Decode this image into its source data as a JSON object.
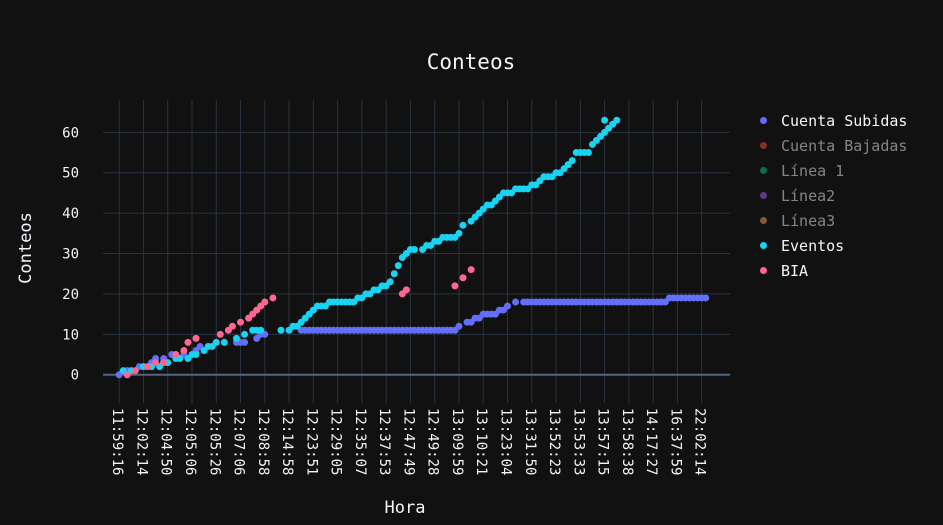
{
  "chart_data": {
    "type": "scatter",
    "title": "Conteos",
    "xlabel": "Hora",
    "ylabel": "Conteos",
    "ylim": [
      -7,
      68
    ],
    "yticks": [
      0,
      10,
      20,
      30,
      40,
      50,
      60
    ],
    "grid": true,
    "legend_position": "right",
    "xticks": [
      {
        "i": 0,
        "label": "11:59:16"
      },
      {
        "i": 6,
        "label": "12:02:14"
      },
      {
        "i": 12,
        "label": "12:04:50"
      },
      {
        "i": 18,
        "label": "12:05:06"
      },
      {
        "i": 24,
        "label": "12:05:26"
      },
      {
        "i": 30,
        "label": "12:07:06"
      },
      {
        "i": 36,
        "label": "12:08:58"
      },
      {
        "i": 42,
        "label": "12:14:58"
      },
      {
        "i": 48,
        "label": "12:23:51"
      },
      {
        "i": 54,
        "label": "12:29:05"
      },
      {
        "i": 60,
        "label": "12:35:07"
      },
      {
        "i": 66,
        "label": "12:37:53"
      },
      {
        "i": 72,
        "label": "12:47:49"
      },
      {
        "i": 78,
        "label": "12:49:28"
      },
      {
        "i": 84,
        "label": "13:09:59"
      },
      {
        "i": 90,
        "label": "13:10:21"
      },
      {
        "i": 96,
        "label": "13:23:04"
      },
      {
        "i": 102,
        "label": "13:31:50"
      },
      {
        "i": 108,
        "label": "13:52:23"
      },
      {
        "i": 114,
        "label": "13:53:33"
      },
      {
        "i": 120,
        "label": "13:57:15"
      },
      {
        "i": 126,
        "label": "13:58:38"
      },
      {
        "i": 132,
        "label": "14:17:27"
      },
      {
        "i": 138,
        "label": "16:37:59"
      },
      {
        "i": 144,
        "label": "22:02:14"
      }
    ],
    "series": [
      {
        "name": "Cuenta Subidas",
        "color": "#636efa",
        "visible": true,
        "points": [
          [
            0,
            0
          ],
          [
            2,
            1
          ],
          [
            5,
            2
          ],
          [
            8,
            3
          ],
          [
            9,
            4
          ],
          [
            11,
            4
          ],
          [
            13,
            5
          ],
          [
            16,
            5
          ],
          [
            19,
            6
          ],
          [
            20,
            7
          ],
          [
            29,
            8
          ],
          [
            30,
            8
          ],
          [
            31,
            8
          ],
          [
            34,
            9
          ],
          [
            35,
            10
          ],
          [
            36,
            10
          ],
          [
            45,
            11
          ],
          [
            46,
            11
          ],
          [
            47,
            11
          ],
          [
            48,
            11
          ],
          [
            49,
            11
          ],
          [
            50,
            11
          ],
          [
            51,
            11
          ],
          [
            52,
            11
          ],
          [
            53,
            11
          ],
          [
            54,
            11
          ],
          [
            55,
            11
          ],
          [
            56,
            11
          ],
          [
            57,
            11
          ],
          [
            58,
            11
          ],
          [
            59,
            11
          ],
          [
            60,
            11
          ],
          [
            61,
            11
          ],
          [
            62,
            11
          ],
          [
            63,
            11
          ],
          [
            64,
            11
          ],
          [
            65,
            11
          ],
          [
            66,
            11
          ],
          [
            67,
            11
          ],
          [
            68,
            11
          ],
          [
            69,
            11
          ],
          [
            70,
            11
          ],
          [
            71,
            11
          ],
          [
            72,
            11
          ],
          [
            73,
            11
          ],
          [
            74,
            11
          ],
          [
            75,
            11
          ],
          [
            76,
            11
          ],
          [
            77,
            11
          ],
          [
            78,
            11
          ],
          [
            79,
            11
          ],
          [
            80,
            11
          ],
          [
            81,
            11
          ],
          [
            82,
            11
          ],
          [
            83,
            11
          ],
          [
            84,
            12
          ],
          [
            86,
            13
          ],
          [
            87,
            13
          ],
          [
            88,
            14
          ],
          [
            89,
            14
          ],
          [
            90,
            15
          ],
          [
            91,
            15
          ],
          [
            92,
            15
          ],
          [
            93,
            15
          ],
          [
            94,
            16
          ],
          [
            95,
            16
          ],
          [
            96,
            17
          ],
          [
            98,
            18
          ],
          [
            100,
            18
          ],
          [
            101,
            18
          ],
          [
            102,
            18
          ],
          [
            103,
            18
          ],
          [
            104,
            18
          ],
          [
            105,
            18
          ],
          [
            106,
            18
          ],
          [
            107,
            18
          ],
          [
            108,
            18
          ],
          [
            109,
            18
          ],
          [
            110,
            18
          ],
          [
            111,
            18
          ],
          [
            112,
            18
          ],
          [
            113,
            18
          ],
          [
            114,
            18
          ],
          [
            115,
            18
          ],
          [
            116,
            18
          ],
          [
            117,
            18
          ],
          [
            118,
            18
          ],
          [
            119,
            18
          ],
          [
            120,
            18
          ],
          [
            121,
            18
          ],
          [
            122,
            18
          ],
          [
            123,
            18
          ],
          [
            124,
            18
          ],
          [
            125,
            18
          ],
          [
            126,
            18
          ],
          [
            127,
            18
          ],
          [
            128,
            18
          ],
          [
            129,
            18
          ],
          [
            130,
            18
          ],
          [
            131,
            18
          ],
          [
            132,
            18
          ],
          [
            133,
            18
          ],
          [
            134,
            18
          ],
          [
            135,
            18
          ],
          [
            136,
            19
          ],
          [
            137,
            19
          ],
          [
            138,
            19
          ],
          [
            139,
            19
          ],
          [
            140,
            19
          ],
          [
            141,
            19
          ],
          [
            142,
            19
          ],
          [
            143,
            19
          ],
          [
            144,
            19
          ],
          [
            145,
            19
          ]
        ]
      },
      {
        "name": "Cuenta Bajadas",
        "color": "#ef553b",
        "visible": false,
        "points": []
      },
      {
        "name": "Línea 1",
        "color": "#00cc96",
        "visible": false,
        "points": []
      },
      {
        "name": "Línea2",
        "color": "#ab63fa",
        "visible": false,
        "points": []
      },
      {
        "name": "Línea3",
        "color": "#ffa15a",
        "visible": false,
        "points": []
      },
      {
        "name": "Eventos",
        "color": "#19d3f3",
        "visible": true,
        "points": [
          [
            1,
            1
          ],
          [
            3,
            1
          ],
          [
            6,
            2
          ],
          [
            8,
            2
          ],
          [
            10,
            2
          ],
          [
            11,
            3
          ],
          [
            12,
            3
          ],
          [
            14,
            4
          ],
          [
            15,
            4
          ],
          [
            17,
            4
          ],
          [
            18,
            5
          ],
          [
            19,
            5
          ],
          [
            21,
            6
          ],
          [
            22,
            7
          ],
          [
            23,
            7
          ],
          [
            24,
            8
          ],
          [
            26,
            8
          ],
          [
            29,
            9
          ],
          [
            31,
            10
          ],
          [
            33,
            11
          ],
          [
            34,
            11
          ],
          [
            35,
            11
          ],
          [
            40,
            11
          ],
          [
            42,
            11
          ],
          [
            43,
            12
          ],
          [
            44,
            12
          ],
          [
            45,
            13
          ],
          [
            46,
            14
          ],
          [
            47,
            15
          ],
          [
            48,
            16
          ],
          [
            49,
            17
          ],
          [
            50,
            17
          ],
          [
            51,
            17
          ],
          [
            52,
            18
          ],
          [
            53,
            18
          ],
          [
            54,
            18
          ],
          [
            55,
            18
          ],
          [
            56,
            18
          ],
          [
            57,
            18
          ],
          [
            58,
            18
          ],
          [
            59,
            19
          ],
          [
            60,
            19
          ],
          [
            61,
            20
          ],
          [
            62,
            20
          ],
          [
            63,
            21
          ],
          [
            64,
            21
          ],
          [
            65,
            22
          ],
          [
            66,
            22
          ],
          [
            67,
            23
          ],
          [
            68,
            25
          ],
          [
            69,
            27
          ],
          [
            70,
            29
          ],
          [
            71,
            30
          ],
          [
            72,
            31
          ],
          [
            73,
            31
          ],
          [
            75,
            31
          ],
          [
            76,
            32
          ],
          [
            77,
            32
          ],
          [
            78,
            33
          ],
          [
            79,
            33
          ],
          [
            80,
            34
          ],
          [
            81,
            34
          ],
          [
            82,
            34
          ],
          [
            83,
            34
          ],
          [
            84,
            35
          ],
          [
            85,
            37
          ],
          [
            87,
            38
          ],
          [
            88,
            39
          ],
          [
            89,
            40
          ],
          [
            90,
            41
          ],
          [
            91,
            42
          ],
          [
            92,
            42
          ],
          [
            93,
            43
          ],
          [
            94,
            44
          ],
          [
            95,
            45
          ],
          [
            96,
            45
          ],
          [
            97,
            45
          ],
          [
            98,
            46
          ],
          [
            99,
            46
          ],
          [
            100,
            46
          ],
          [
            101,
            46
          ],
          [
            102,
            47
          ],
          [
            103,
            47
          ],
          [
            104,
            48
          ],
          [
            105,
            49
          ],
          [
            106,
            49
          ],
          [
            107,
            49
          ],
          [
            108,
            50
          ],
          [
            109,
            50
          ],
          [
            110,
            51
          ],
          [
            111,
            52
          ],
          [
            112,
            53
          ],
          [
            113,
            55
          ],
          [
            114,
            55
          ],
          [
            115,
            55
          ],
          [
            116,
            55
          ],
          [
            117,
            57
          ],
          [
            118,
            58
          ],
          [
            119,
            59
          ],
          [
            120,
            60
          ],
          [
            121,
            61
          ],
          [
            122,
            62
          ],
          [
            123,
            63
          ],
          [
            120,
            63
          ]
        ]
      },
      {
        "name": "BIA",
        "color": "#ff6692",
        "visible": true,
        "points": [
          [
            2,
            0
          ],
          [
            4,
            1
          ],
          [
            7,
            2
          ],
          [
            9,
            3
          ],
          [
            11,
            3
          ],
          [
            14,
            5
          ],
          [
            16,
            6
          ],
          [
            17,
            8
          ],
          [
            19,
            9
          ],
          [
            25,
            10
          ],
          [
            27,
            11
          ],
          [
            28,
            12
          ],
          [
            30,
            13
          ],
          [
            32,
            14
          ],
          [
            33,
            15
          ],
          [
            34,
            16
          ],
          [
            35,
            17
          ],
          [
            36,
            18
          ],
          [
            38,
            19
          ],
          [
            70,
            20
          ],
          [
            71,
            21
          ],
          [
            83,
            22
          ],
          [
            85,
            24
          ],
          [
            87,
            26
          ]
        ]
      }
    ]
  }
}
